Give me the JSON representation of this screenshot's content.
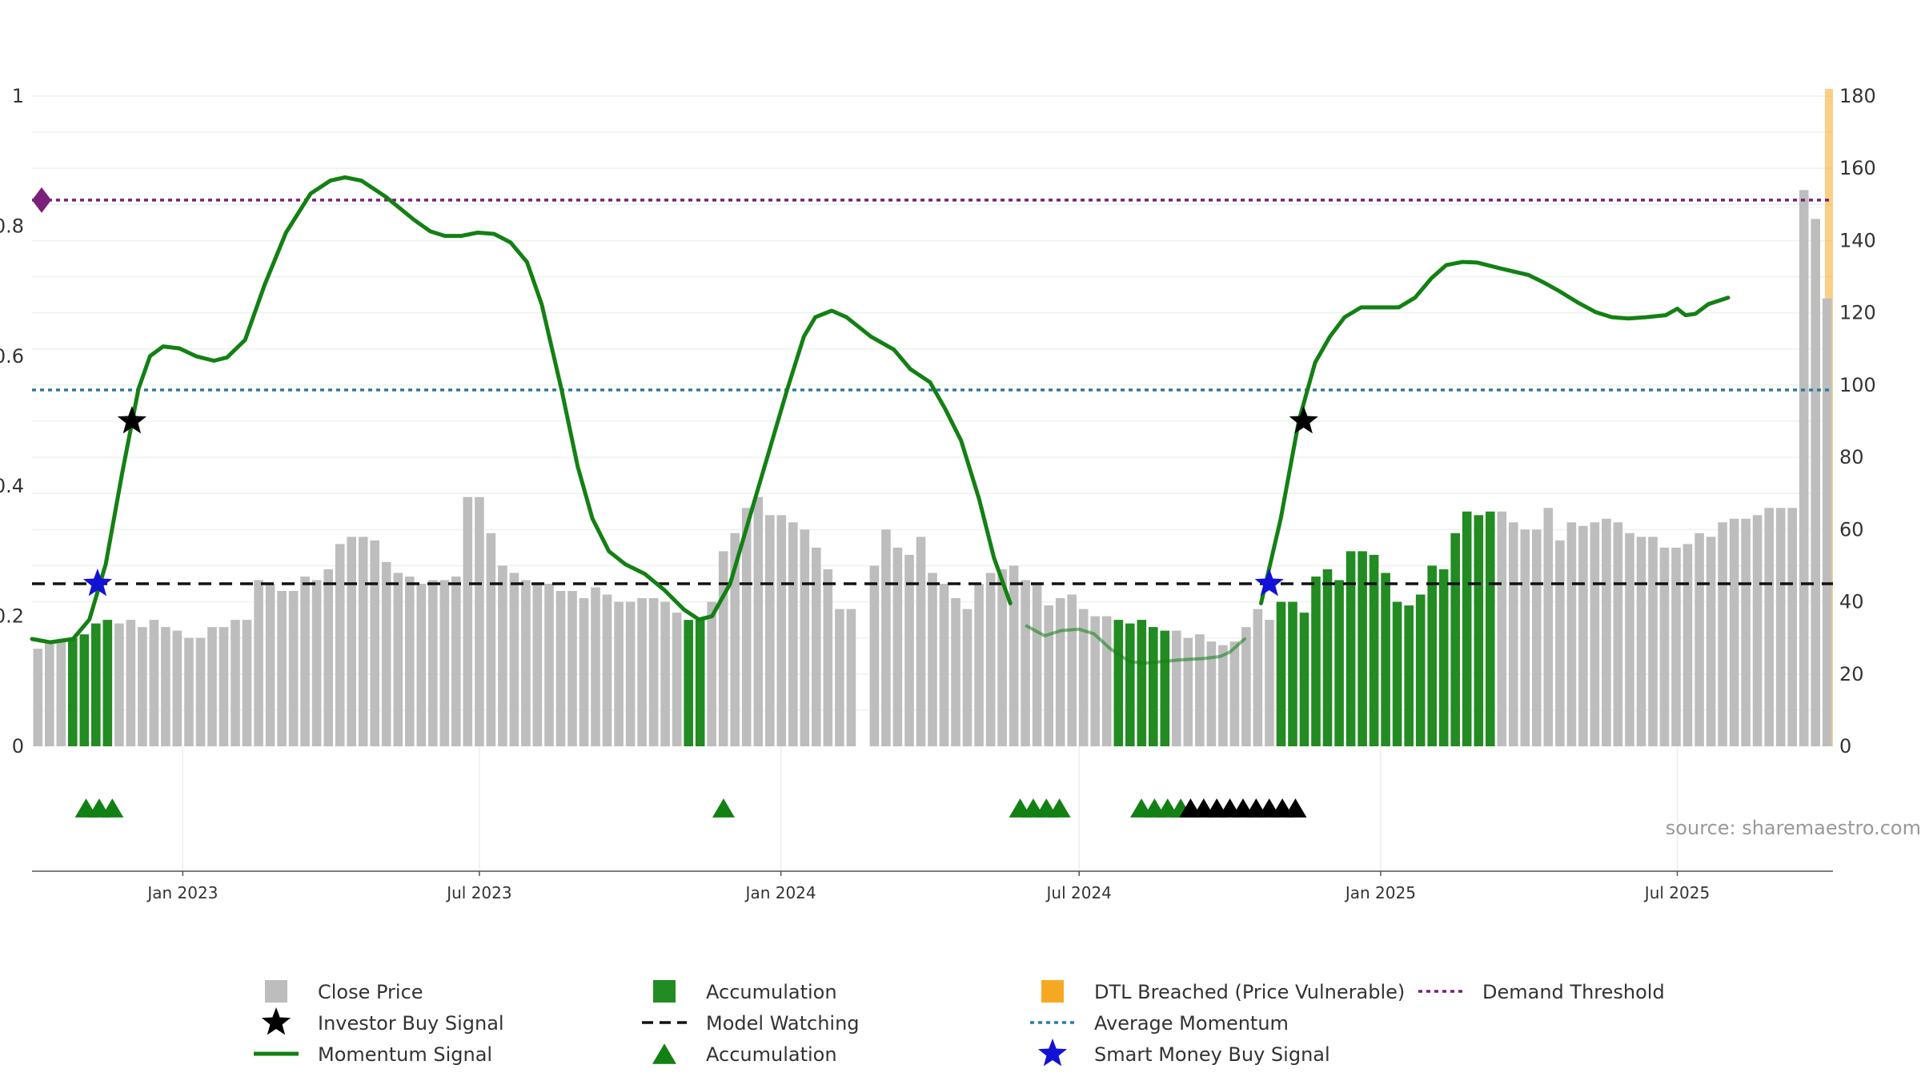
{
  "chart_data": {
    "type": "bar",
    "source": "source: sharemaestro.com",
    "left_axis": {
      "range": [
        0,
        1
      ],
      "ticks": [
        0,
        0.2,
        0.4,
        0.6,
        0.8,
        1
      ],
      "tick_labels": [
        "0",
        "0.2",
        "0.4",
        "0.6",
        "0.8",
        "1"
      ]
    },
    "right_axis": {
      "range": [
        0,
        180
      ],
      "ticks": [
        0,
        20,
        40,
        60,
        80,
        100,
        120,
        140,
        160,
        180
      ],
      "tick_labels": [
        "0",
        "20",
        "40",
        "60",
        "80",
        "100",
        "120",
        "140",
        "160",
        "180"
      ]
    },
    "x_axis": {
      "start": "2022-10-01",
      "end": "2025-10-04",
      "ticks": [
        {
          "date": "2023-01-01",
          "label": "Jan 2023"
        },
        {
          "date": "2023-07-01",
          "label": "Jul 2023"
        },
        {
          "date": "2024-01-01",
          "label": "Jan 2024"
        },
        {
          "date": "2024-07-01",
          "label": "Jul 2024"
        },
        {
          "date": "2025-01-01",
          "label": "Jan 2025"
        },
        {
          "date": "2025-07-01",
          "label": "Jul 2025"
        }
      ]
    },
    "colors": {
      "price": "#bdbdbd",
      "accumulation": "#228b22",
      "momentum": "#138013",
      "average": "#2e7aa3",
      "watching": "#111111",
      "demand": "#7b1f7b",
      "dtl": "#f7a823",
      "smart": "#1212d6",
      "investor": "#000000",
      "buy_triangle": "#000000"
    },
    "close_price": [
      27,
      29,
      29,
      30,
      31,
      34,
      35,
      34,
      35,
      33,
      35,
      33,
      32,
      30,
      30,
      33,
      33,
      35,
      35,
      46,
      45,
      43,
      43,
      47,
      46,
      49,
      56,
      58,
      58,
      57,
      51,
      48,
      47,
      45,
      46,
      46,
      47,
      69,
      69,
      59,
      50,
      48,
      46,
      45,
      45,
      43,
      43,
      41,
      44,
      42,
      40,
      40,
      41,
      41,
      40,
      37,
      35,
      35,
      40,
      54,
      59,
      66,
      69,
      64,
      64,
      62,
      60,
      55,
      49,
      38,
      38,
      null,
      50,
      60,
      55,
      53,
      58,
      48,
      45,
      41,
      38,
      45,
      48,
      49,
      50,
      46,
      45,
      39,
      41,
      42,
      38,
      36,
      36,
      35,
      34,
      35,
      33,
      32,
      32,
      30,
      31,
      29,
      28,
      29,
      33,
      38,
      35,
      40,
      40,
      37,
      47,
      49,
      46,
      54,
      54,
      53,
      48,
      40,
      39,
      42,
      50,
      49,
      59,
      65,
      64,
      65,
      65,
      62,
      60,
      60,
      66,
      57,
      62,
      61,
      62,
      63,
      62,
      59,
      58,
      58,
      55,
      55,
      56,
      59,
      58,
      62,
      63,
      63,
      64,
      66,
      66,
      66,
      154,
      146,
      124
    ],
    "accumulation_bars": [
      3,
      4,
      5,
      6,
      56,
      57,
      93,
      94,
      95,
      96,
      97,
      107,
      108,
      109,
      110,
      111,
      112,
      113,
      114,
      115,
      116,
      117,
      118,
      119,
      120,
      121,
      122,
      123,
      124,
      125
    ],
    "momentum": [
      [
        "2022-10-01",
        0.165
      ],
      [
        "2022-10-12",
        0.16
      ],
      [
        "2022-10-26",
        0.165
      ],
      [
        "2022-11-05",
        0.195
      ],
      [
        "2022-11-15",
        0.28
      ],
      [
        "2022-11-25",
        0.42
      ],
      [
        "2022-12-05",
        0.55
      ],
      [
        "2022-12-12",
        0.6
      ],
      [
        "2022-12-20",
        0.615
      ],
      [
        "2022-12-30",
        0.612
      ],
      [
        "2023-01-09",
        0.6
      ],
      [
        "2023-01-20",
        0.593
      ],
      [
        "2023-01-28",
        0.598
      ],
      [
        "2023-02-08",
        0.625
      ],
      [
        "2023-02-20",
        0.71
      ],
      [
        "2023-03-05",
        0.79
      ],
      [
        "2023-03-20",
        0.85
      ],
      [
        "2023-04-01",
        0.87
      ],
      [
        "2023-04-10",
        0.875
      ],
      [
        "2023-04-20",
        0.87
      ],
      [
        "2023-05-05",
        0.845
      ],
      [
        "2023-05-22",
        0.81
      ],
      [
        "2023-06-01",
        0.792
      ],
      [
        "2023-06-10",
        0.785
      ],
      [
        "2023-06-20",
        0.785
      ],
      [
        "2023-06-30",
        0.79
      ],
      [
        "2023-07-10",
        0.788
      ],
      [
        "2023-07-20",
        0.775
      ],
      [
        "2023-07-30",
        0.745
      ],
      [
        "2023-08-08",
        0.68
      ],
      [
        "2023-08-20",
        0.55
      ],
      [
        "2023-08-30",
        0.43
      ],
      [
        "2023-09-08",
        0.35
      ],
      [
        "2023-09-18",
        0.3
      ],
      [
        "2023-09-28",
        0.28
      ],
      [
        "2023-10-10",
        0.265
      ],
      [
        "2023-10-22",
        0.24
      ],
      [
        "2023-11-03",
        0.21
      ],
      [
        "2023-11-12",
        0.195
      ],
      [
        "2023-11-20",
        0.2
      ],
      [
        "2023-12-01",
        0.25
      ],
      [
        "2023-12-15",
        0.37
      ],
      [
        "2024-01-05",
        0.55
      ],
      [
        "2024-01-15",
        0.63
      ],
      [
        "2024-01-22",
        0.66
      ],
      [
        "2024-02-01",
        0.67
      ],
      [
        "2024-02-10",
        0.66
      ],
      [
        "2024-02-25",
        0.63
      ],
      [
        "2024-03-10",
        0.61
      ],
      [
        "2024-03-20",
        0.58
      ],
      [
        "2024-04-01",
        0.56
      ],
      [
        "2024-04-10",
        0.52
      ],
      [
        "2024-04-20",
        0.47
      ],
      [
        "2024-05-01",
        0.38
      ],
      [
        "2024-05-10",
        0.29
      ],
      [
        "2024-05-20",
        0.22
      ],
      [
        "2024-05-30",
        0.185
      ],
      [
        "2024-06-10",
        0.17
      ],
      [
        "2024-06-20",
        0.178
      ],
      [
        "2024-07-01",
        0.18
      ],
      [
        "2024-07-10",
        0.173
      ],
      [
        "2024-07-20",
        0.15
      ],
      [
        "2024-08-01",
        0.13
      ],
      [
        "2024-08-10",
        0.128
      ],
      [
        "2024-08-20",
        0.13
      ],
      [
        "2024-09-01",
        0.133
      ],
      [
        "2024-09-15",
        0.135
      ],
      [
        "2024-09-25",
        0.138
      ],
      [
        "2024-10-01",
        0.145
      ],
      [
        "2024-10-10",
        0.165
      ],
      [
        "2024-10-20",
        0.22
      ],
      [
        "2024-11-01",
        0.35
      ],
      [
        "2024-11-12",
        0.5
      ],
      [
        "2024-11-22",
        0.59
      ],
      [
        "2024-12-01",
        0.63
      ],
      [
        "2024-12-10",
        0.66
      ],
      [
        "2024-12-20",
        0.675
      ],
      [
        "2025-01-01",
        0.675
      ],
      [
        "2025-01-12",
        0.675
      ],
      [
        "2025-01-22",
        0.69
      ],
      [
        "2025-02-01",
        0.72
      ],
      [
        "2025-02-10",
        0.74
      ],
      [
        "2025-02-20",
        0.745
      ],
      [
        "2025-03-01",
        0.744
      ],
      [
        "2025-03-15",
        0.735
      ],
      [
        "2025-04-01",
        0.725
      ],
      [
        "2025-04-10",
        0.714
      ],
      [
        "2025-04-20",
        0.7
      ],
      [
        "2025-05-01",
        0.683
      ],
      [
        "2025-05-12",
        0.668
      ],
      [
        "2025-05-22",
        0.66
      ],
      [
        "2025-06-01",
        0.658
      ],
      [
        "2025-06-12",
        0.66
      ],
      [
        "2025-06-24",
        0.663
      ],
      [
        "2025-07-01",
        0.673
      ],
      [
        "2025-07-06",
        0.663
      ],
      [
        "2025-07-12",
        0.665
      ],
      [
        "2025-07-20",
        0.68
      ],
      [
        "2025-08-01",
        0.69
      ]
    ],
    "weak_momentum_range": [
      "2024-05-25",
      "2024-10-12"
    ],
    "average_momentum": 0.548,
    "model_watching": 0.25,
    "demand_threshold": 0.84,
    "investor_buy_signals": [
      [
        "2022-12-01",
        0.5
      ],
      [
        "2024-11-15",
        0.5
      ]
    ],
    "smart_money_buy_signals": [
      [
        "2022-11-10",
        0.25
      ],
      [
        "2024-10-25",
        0.25
      ]
    ],
    "accumulation_markers": [
      "2022-11-03",
      "2022-11-11",
      "2022-11-19",
      "2023-11-27",
      "2024-05-26",
      "2024-06-03",
      "2024-06-11",
      "2024-06-19",
      "2024-08-08",
      "2024-08-16",
      "2024-08-24",
      "2024-09-01"
    ],
    "buy_markers": [
      "2024-09-07",
      "2024-09-15",
      "2024-09-23",
      "2024-10-01",
      "2024-10-09",
      "2024-10-17",
      "2024-10-25",
      "2024-11-02",
      "2024-11-10"
    ],
    "dtl_breached_band": [
      "2025-08-16",
      "2025-10-04"
    ],
    "legend": [
      {
        "key": "price",
        "label": "Close Price",
        "symbol": "square",
        "color": "#bdbdbd"
      },
      {
        "key": "investor",
        "label": "Investor Buy Signal",
        "symbol": "star",
        "color": "#000000"
      },
      {
        "key": "momentum",
        "label": "Momentum Signal",
        "symbol": "line",
        "color": "#138013"
      },
      {
        "key": "accumulation",
        "label": "Accumulation",
        "symbol": "square",
        "color": "#228b22"
      },
      {
        "key": "watching",
        "label": "Model Watching",
        "symbol": "dash",
        "color": "#111111"
      },
      {
        "key": "accumulation_marker",
        "label": "Accumulation",
        "symbol": "triangle",
        "color": "#138013"
      },
      {
        "key": "dtl",
        "label": "DTL Breached (Price Vulnerable)",
        "symbol": "square",
        "color": "#f7a823"
      },
      {
        "key": "average",
        "label": "Average Momentum",
        "symbol": "dot",
        "color": "#2e7aa3"
      },
      {
        "key": "smart",
        "label": "Smart Money Buy Signal",
        "symbol": "star",
        "color": "#1212d6"
      },
      {
        "key": "demand",
        "label": "Demand Threshold",
        "symbol": "dot",
        "color": "#7b1f7b"
      }
    ]
  }
}
